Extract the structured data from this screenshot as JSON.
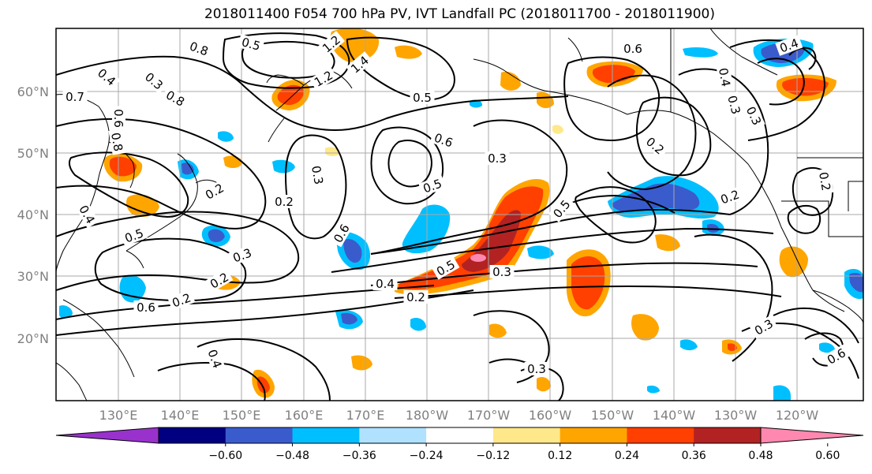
{
  "title": "2018011400 F054 700 hPa PV, IVT Landfall PC (2018011700 - 2018011900)",
  "lat_labels": [
    "60°N",
    "50°N",
    "40°N",
    "30°N",
    "20°N"
  ],
  "lon_labels": [
    "130°E",
    "140°E",
    "150°E",
    "160°E",
    "170°E",
    "180°W",
    "170°W",
    "160°W",
    "150°W",
    "140°W",
    "130°W",
    "120°W"
  ],
  "colorbar": {
    "colors": [
      "#9932cc",
      "#000080",
      "#3a5bcc",
      "#00bfff",
      "#b0e2ff",
      "#ffffff",
      "#ffe88a",
      "#ffa500",
      "#ff4000",
      "#b22222",
      "#ff88b0"
    ],
    "tick_labels": [
      "−0.60",
      "−0.48",
      "−0.36",
      "−0.24",
      "−0.12",
      "0.12",
      "0.24",
      "0.36",
      "0.48",
      "0.60"
    ]
  },
  "contour_labels": [
    "0.8",
    "0.5",
    "1.2",
    "1.4",
    "1.2",
    "0.6",
    "0.4",
    "0.3",
    "0.4",
    "0.7",
    "0.8",
    "0.5",
    "0.6",
    "0.8",
    "0.4",
    "0.3",
    "0.3",
    "0.2",
    "0.6",
    "0.3",
    "0.3",
    "0.5",
    "0.2",
    "0.2",
    "0.6",
    "0.5",
    "0.4",
    "0.5",
    "0.2",
    "0.3",
    "0.5",
    "0.6",
    "0.4",
    "0.3",
    "0.2",
    "0.2",
    "0.2",
    "0.3",
    "0.6",
    "0.4",
    "0.3",
    "0.2"
  ]
}
